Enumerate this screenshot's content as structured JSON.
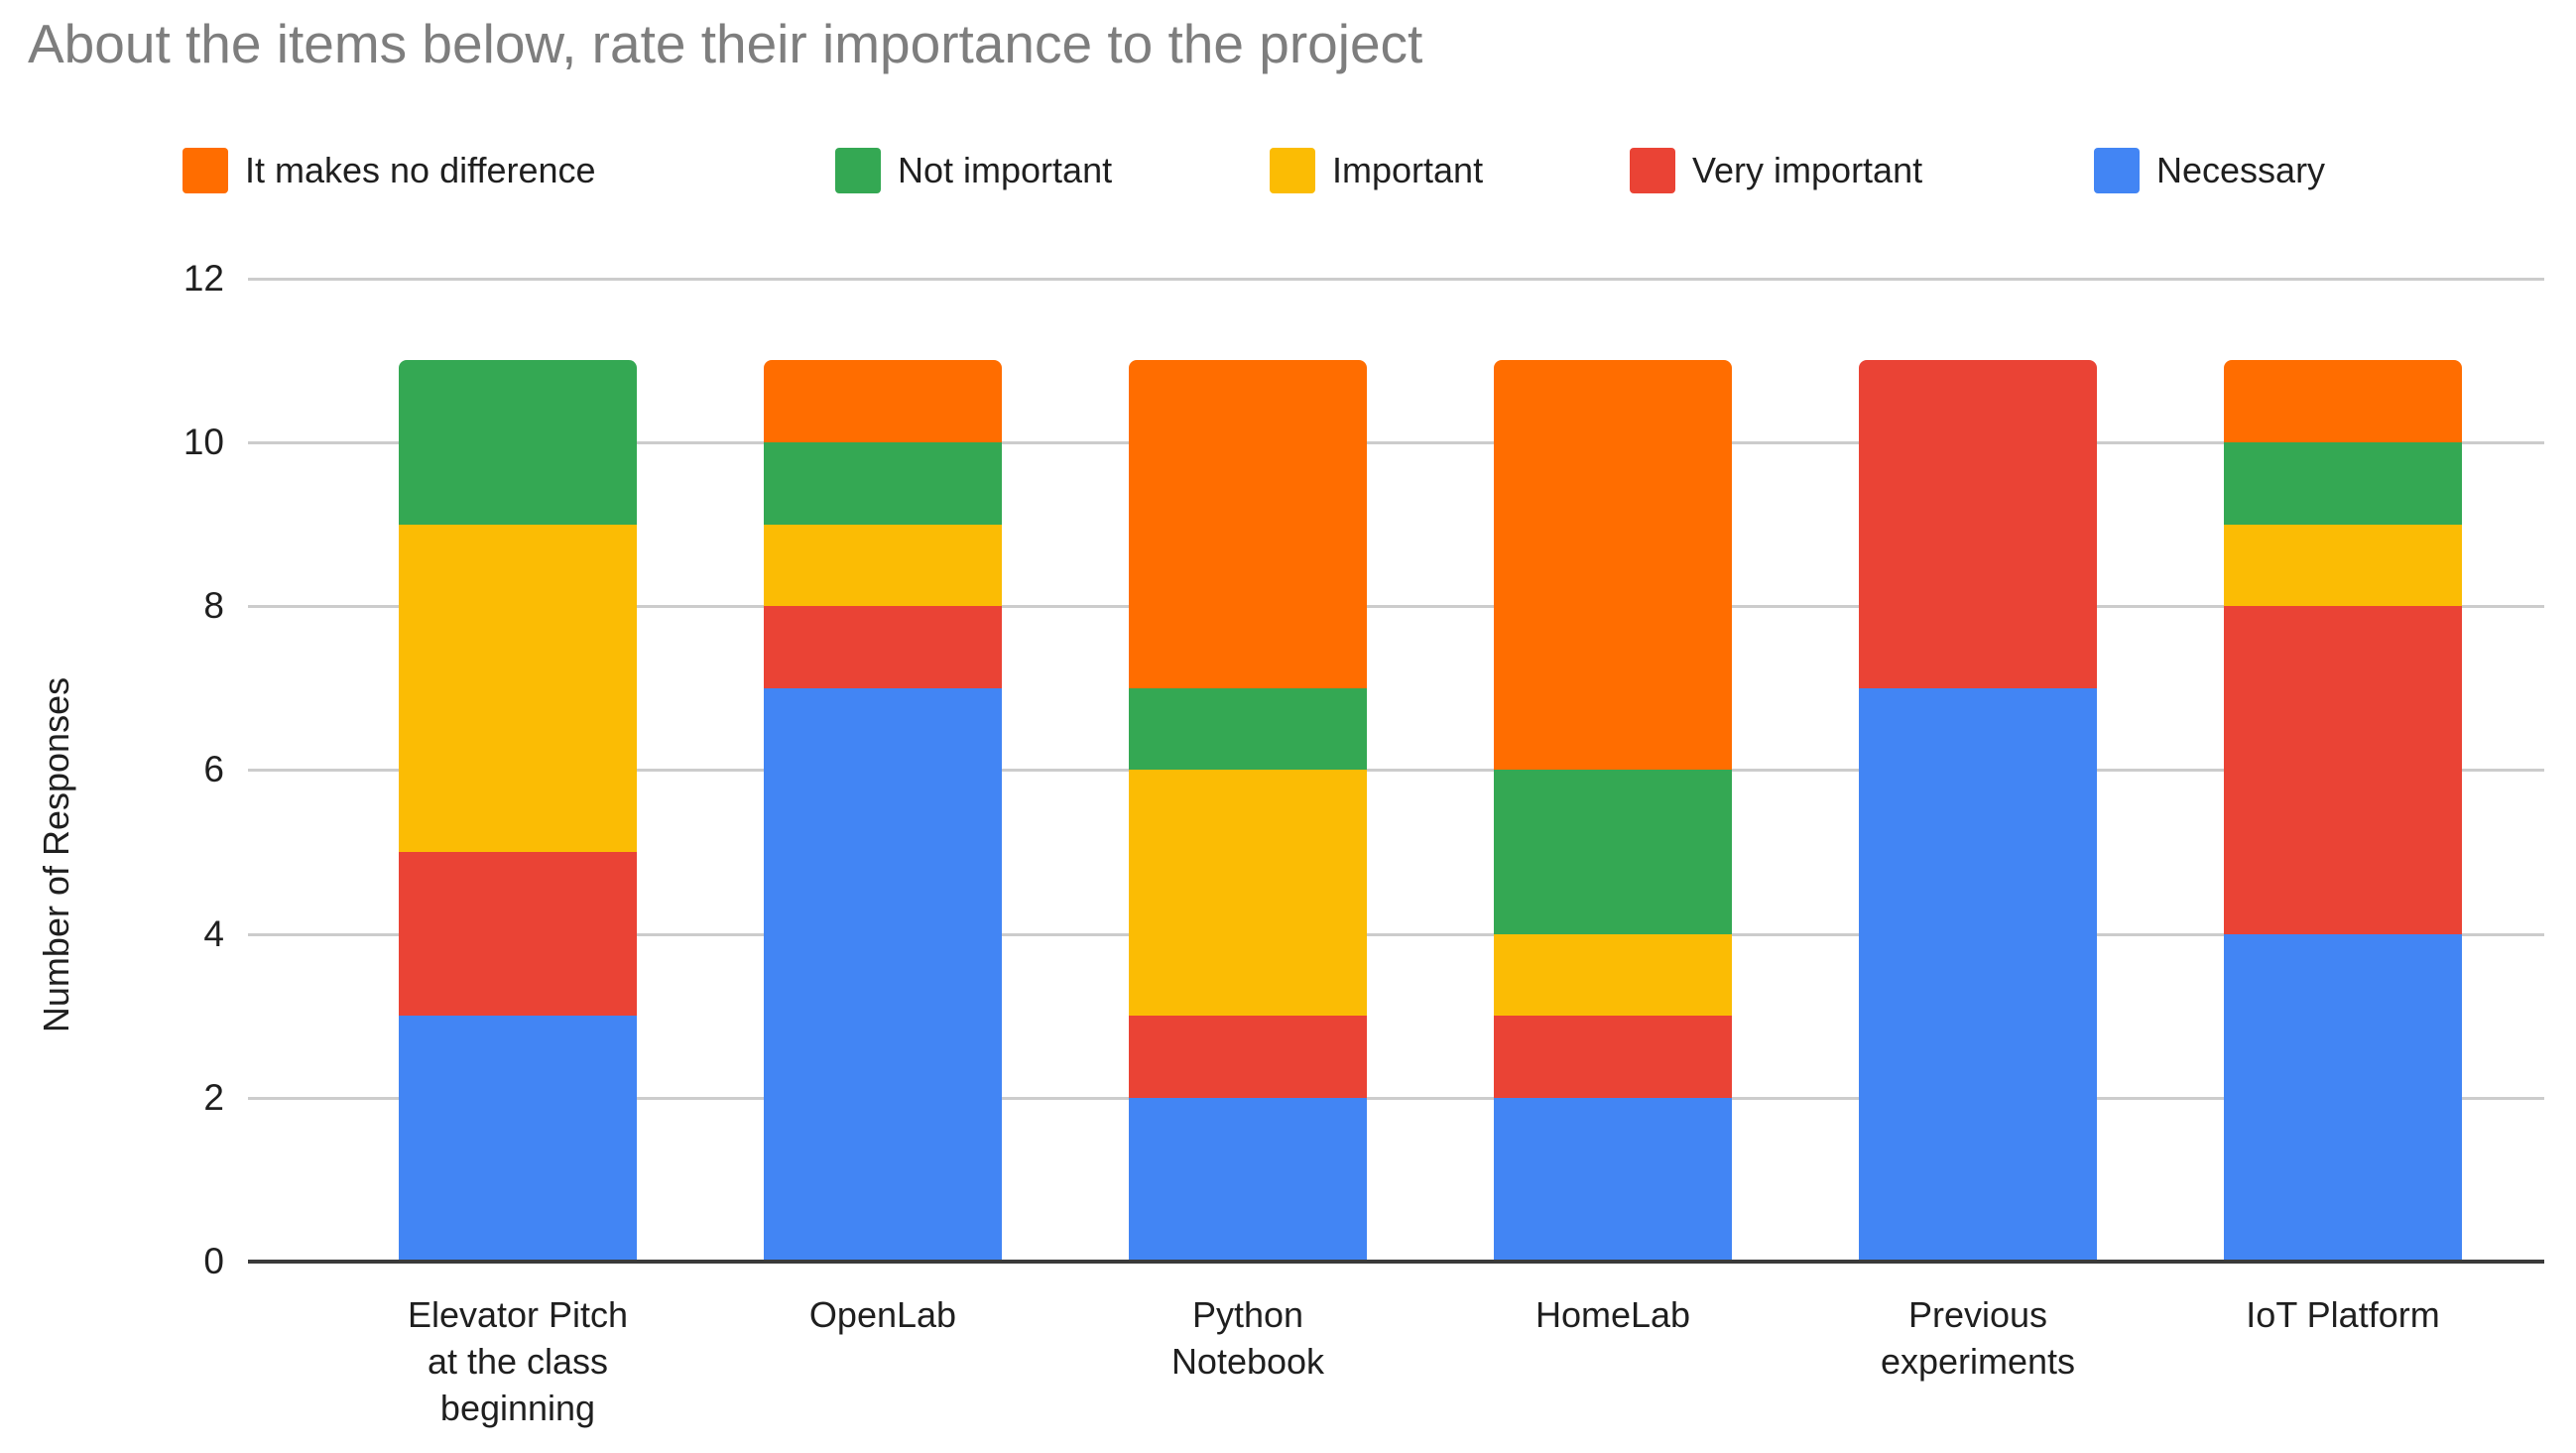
{
  "chart_data": {
    "type": "bar",
    "stacked": true,
    "title": "About the items below, rate their importance to the project",
    "title_color": "#7e7e7e",
    "xlabel": "",
    "ylabel": "Number of Responses",
    "ylim": [
      0,
      12
    ],
    "yticks": [
      0,
      2,
      4,
      6,
      8,
      10,
      12
    ],
    "grid": true,
    "legend_position": "top",
    "categories": [
      "Elevator Pitch\nat the class\nbeginning",
      "OpenLab",
      "Python\nNotebook",
      "HomeLab",
      "Previous\nexperiments",
      "IoT Platform"
    ],
    "series": [
      {
        "name": "It makes no difference",
        "color": "#FF6D00",
        "values": [
          0,
          1,
          4,
          5,
          0,
          1
        ]
      },
      {
        "name": "Not important",
        "color": "#34A853",
        "values": [
          2,
          1,
          1,
          2,
          0,
          1
        ]
      },
      {
        "name": "Important",
        "color": "#FBBC04",
        "values": [
          4,
          1,
          3,
          1,
          0,
          1
        ]
      },
      {
        "name": "Very important",
        "color": "#EA4335",
        "values": [
          2,
          1,
          1,
          1,
          4,
          4
        ]
      },
      {
        "name": "Necessary",
        "color": "#4285F4",
        "values": [
          3,
          7,
          2,
          2,
          7,
          4
        ]
      }
    ],
    "stack_order_bottom_to_top": [
      "Necessary",
      "Very important",
      "Important",
      "Not important",
      "It makes no difference"
    ],
    "bar_totals": [
      11,
      11,
      11,
      11,
      11,
      11
    ]
  }
}
